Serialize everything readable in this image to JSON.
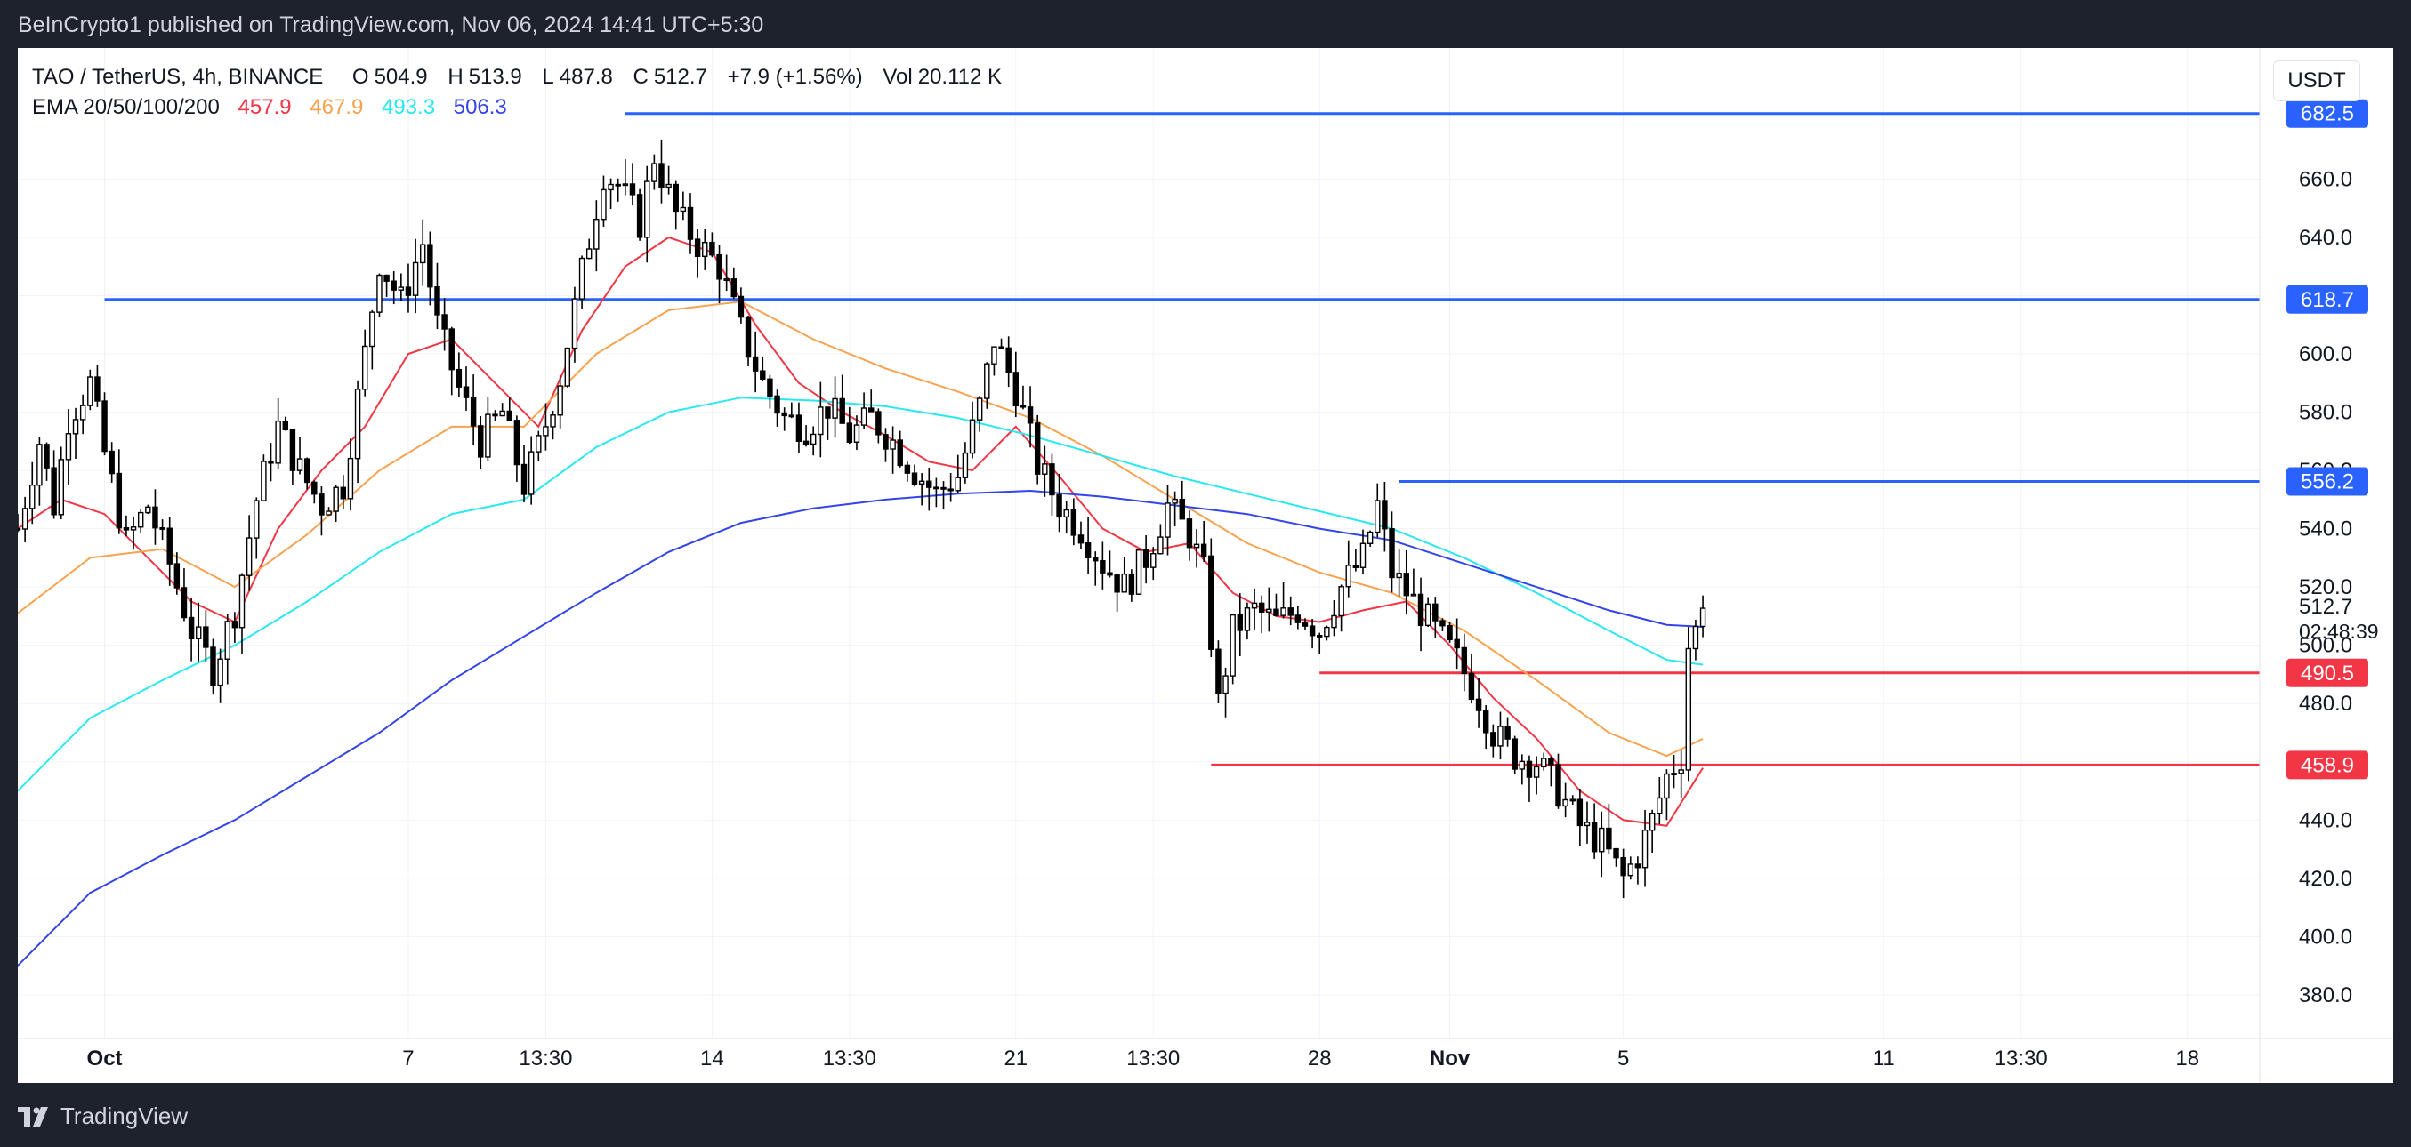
{
  "header": {
    "publisher": "BeInCrypto1 published on TradingView.com, Nov 06, 2024 14:41 UTC+5:30"
  },
  "footer": {
    "brand": "TradingView"
  },
  "legend": {
    "symbol": "TAO / TetherUS, 4h, BINANCE",
    "open_label": "O",
    "open": "504.9",
    "high_label": "H",
    "high": "513.9",
    "low_label": "L",
    "low": "487.8",
    "close_label": "C",
    "close": "512.7",
    "change": "+7.9 (+1.56%)",
    "vol_label": "Vol",
    "vol": "20.112 K",
    "ema_label": "EMA 20/50/100/200",
    "ema_values": [
      "457.9",
      "467.9",
      "493.3",
      "506.3"
    ]
  },
  "currency": "USDT",
  "colors": {
    "ema20": "#f23645",
    "ema50": "#f7a350",
    "ema100": "#2ae8f0",
    "ema200": "#3344e8",
    "resistance": "#2962ff",
    "support": "#f23645",
    "price_marker": "#ffffff"
  },
  "chart_data": {
    "type": "candlestick",
    "title": "TAO / TetherUS, 4h, BINANCE",
    "ylim": [
      365,
      705
    ],
    "y_ticks": [
      "380.0",
      "400.0",
      "420.0",
      "440.0",
      "460.0",
      "480.0",
      "500.0",
      "520.0",
      "540.0",
      "560.0",
      "580.0",
      "600.0",
      "620.0",
      "640.0",
      "660.0"
    ],
    "x_ticks": [
      {
        "label": "Oct",
        "bold": true,
        "x": 12
      },
      {
        "label": "7",
        "bold": false,
        "x": 54
      },
      {
        "label": "13:30",
        "bold": false,
        "x": 73
      },
      {
        "label": "14",
        "bold": false,
        "x": 96
      },
      {
        "label": "13:30",
        "bold": false,
        "x": 115
      },
      {
        "label": "21",
        "bold": false,
        "x": 138
      },
      {
        "label": "13:30",
        "bold": false,
        "x": 157
      },
      {
        "label": "28",
        "bold": false,
        "x": 180
      },
      {
        "label": "Nov",
        "bold": true,
        "x": 198
      },
      {
        "label": "5",
        "bold": false,
        "x": 222
      },
      {
        "label": "11",
        "bold": false,
        "x": 258
      },
      {
        "label": "13:30",
        "bold": false,
        "x": 277
      },
      {
        "label": "18",
        "bold": false,
        "x": 300
      }
    ],
    "x_range": [
      0,
      310
    ],
    "ohlc_anchors": [
      {
        "x": 0,
        "price": 540
      },
      {
        "x": 3,
        "price": 570
      },
      {
        "x": 5,
        "price": 548
      },
      {
        "x": 7,
        "price": 578
      },
      {
        "x": 10,
        "price": 590
      },
      {
        "x": 12,
        "price": 566
      },
      {
        "x": 15,
        "price": 535
      },
      {
        "x": 18,
        "price": 548
      },
      {
        "x": 21,
        "price": 528
      },
      {
        "x": 24,
        "price": 505
      },
      {
        "x": 27,
        "price": 492
      },
      {
        "x": 30,
        "price": 512
      },
      {
        "x": 33,
        "price": 550
      },
      {
        "x": 36,
        "price": 575
      },
      {
        "x": 39,
        "price": 560
      },
      {
        "x": 42,
        "price": 548
      },
      {
        "x": 45,
        "price": 555
      },
      {
        "x": 48,
        "price": 600
      },
      {
        "x": 50,
        "price": 632
      },
      {
        "x": 53,
        "price": 618
      },
      {
        "x": 56,
        "price": 638
      },
      {
        "x": 58,
        "price": 610
      },
      {
        "x": 61,
        "price": 588
      },
      {
        "x": 64,
        "price": 570
      },
      {
        "x": 67,
        "price": 580
      },
      {
        "x": 70,
        "price": 555
      },
      {
        "x": 72,
        "price": 568
      },
      {
        "x": 75,
        "price": 592
      },
      {
        "x": 78,
        "price": 628
      },
      {
        "x": 81,
        "price": 662
      },
      {
        "x": 83,
        "price": 658
      },
      {
        "x": 86,
        "price": 645
      },
      {
        "x": 88,
        "price": 668
      },
      {
        "x": 91,
        "price": 648
      },
      {
        "x": 94,
        "price": 638
      },
      {
        "x": 97,
        "price": 630
      },
      {
        "x": 100,
        "price": 608
      },
      {
        "x": 103,
        "price": 590
      },
      {
        "x": 106,
        "price": 578
      },
      {
        "x": 109,
        "price": 575
      },
      {
        "x": 112,
        "price": 582
      },
      {
        "x": 115,
        "price": 572
      },
      {
        "x": 118,
        "price": 578
      },
      {
        "x": 121,
        "price": 570
      },
      {
        "x": 124,
        "price": 560
      },
      {
        "x": 127,
        "price": 552
      },
      {
        "x": 130,
        "price": 558
      },
      {
        "x": 133,
        "price": 582
      },
      {
        "x": 135,
        "price": 605
      },
      {
        "x": 138,
        "price": 588
      },
      {
        "x": 141,
        "price": 562
      },
      {
        "x": 144,
        "price": 548
      },
      {
        "x": 147,
        "price": 540
      },
      {
        "x": 150,
        "price": 528
      },
      {
        "x": 153,
        "price": 520
      },
      {
        "x": 156,
        "price": 530
      },
      {
        "x": 159,
        "price": 548
      },
      {
        "x": 162,
        "price": 538
      },
      {
        "x": 164,
        "price": 525
      },
      {
        "x": 166,
        "price": 480
      },
      {
        "x": 168,
        "price": 505
      },
      {
        "x": 171,
        "price": 512
      },
      {
        "x": 174,
        "price": 508
      },
      {
        "x": 177,
        "price": 512
      },
      {
        "x": 180,
        "price": 505
      },
      {
        "x": 183,
        "price": 520
      },
      {
        "x": 186,
        "price": 530
      },
      {
        "x": 188,
        "price": 548
      },
      {
        "x": 190,
        "price": 525
      },
      {
        "x": 193,
        "price": 515
      },
      {
        "x": 196,
        "price": 505
      },
      {
        "x": 199,
        "price": 495
      },
      {
        "x": 202,
        "price": 482
      },
      {
        "x": 204,
        "price": 470
      },
      {
        "x": 207,
        "price": 462
      },
      {
        "x": 210,
        "price": 460
      },
      {
        "x": 213,
        "price": 450
      },
      {
        "x": 216,
        "price": 438
      },
      {
        "x": 219,
        "price": 432
      },
      {
        "x": 222,
        "price": 420
      },
      {
        "x": 224,
        "price": 428
      },
      {
        "x": 226,
        "price": 440
      },
      {
        "x": 228,
        "price": 455
      },
      {
        "x": 230,
        "price": 462
      },
      {
        "x": 231,
        "price": 500
      },
      {
        "x": 232,
        "price": 505
      },
      {
        "x": 233,
        "price": 512.7
      }
    ],
    "ema_series": [
      {
        "name": "EMA 20",
        "color_key": "ema20",
        "points": [
          [
            0,
            540
          ],
          [
            6,
            550
          ],
          [
            12,
            545
          ],
          [
            18,
            530
          ],
          [
            24,
            515
          ],
          [
            30,
            508
          ],
          [
            36,
            540
          ],
          [
            42,
            560
          ],
          [
            48,
            575
          ],
          [
            54,
            600
          ],
          [
            60,
            605
          ],
          [
            66,
            590
          ],
          [
            72,
            575
          ],
          [
            78,
            608
          ],
          [
            84,
            630
          ],
          [
            90,
            640
          ],
          [
            96,
            635
          ],
          [
            102,
            610
          ],
          [
            108,
            590
          ],
          [
            114,
            580
          ],
          [
            120,
            572
          ],
          [
            126,
            563
          ],
          [
            132,
            560
          ],
          [
            138,
            575
          ],
          [
            144,
            558
          ],
          [
            150,
            540
          ],
          [
            156,
            532
          ],
          [
            162,
            535
          ],
          [
            168,
            518
          ],
          [
            174,
            510
          ],
          [
            180,
            508
          ],
          [
            186,
            512
          ],
          [
            192,
            515
          ],
          [
            198,
            500
          ],
          [
            204,
            482
          ],
          [
            210,
            468
          ],
          [
            216,
            450
          ],
          [
            222,
            440
          ],
          [
            228,
            438
          ],
          [
            233,
            457.9
          ]
        ]
      },
      {
        "name": "EMA 50",
        "color_key": "ema50",
        "points": [
          [
            0,
            511
          ],
          [
            10,
            530
          ],
          [
            20,
            533
          ],
          [
            30,
            520
          ],
          [
            40,
            538
          ],
          [
            50,
            560
          ],
          [
            60,
            575
          ],
          [
            70,
            575
          ],
          [
            80,
            600
          ],
          [
            90,
            615
          ],
          [
            100,
            618
          ],
          [
            110,
            605
          ],
          [
            120,
            595
          ],
          [
            130,
            587
          ],
          [
            140,
            578
          ],
          [
            150,
            565
          ],
          [
            160,
            550
          ],
          [
            170,
            535
          ],
          [
            180,
            525
          ],
          [
            190,
            518
          ],
          [
            200,
            505
          ],
          [
            210,
            488
          ],
          [
            220,
            470
          ],
          [
            228,
            462
          ],
          [
            233,
            467.9
          ]
        ]
      },
      {
        "name": "EMA 100",
        "color_key": "ema100",
        "points": [
          [
            0,
            450
          ],
          [
            10,
            475
          ],
          [
            20,
            488
          ],
          [
            30,
            500
          ],
          [
            40,
            515
          ],
          [
            50,
            532
          ],
          [
            60,
            545
          ],
          [
            70,
            550
          ],
          [
            80,
            568
          ],
          [
            90,
            580
          ],
          [
            100,
            585
          ],
          [
            110,
            584
          ],
          [
            120,
            582
          ],
          [
            130,
            578
          ],
          [
            140,
            572
          ],
          [
            150,
            565
          ],
          [
            160,
            558
          ],
          [
            170,
            552
          ],
          [
            180,
            546
          ],
          [
            190,
            540
          ],
          [
            200,
            530
          ],
          [
            210,
            518
          ],
          [
            220,
            505
          ],
          [
            228,
            495
          ],
          [
            233,
            493.3
          ]
        ]
      },
      {
        "name": "EMA 200",
        "color_key": "ema200",
        "points": [
          [
            0,
            390
          ],
          [
            10,
            415
          ],
          [
            20,
            428
          ],
          [
            30,
            440
          ],
          [
            40,
            455
          ],
          [
            50,
            470
          ],
          [
            60,
            488
          ],
          [
            70,
            503
          ],
          [
            80,
            518
          ],
          [
            90,
            532
          ],
          [
            100,
            542
          ],
          [
            110,
            547
          ],
          [
            120,
            550
          ],
          [
            130,
            552
          ],
          [
            140,
            553
          ],
          [
            150,
            551
          ],
          [
            160,
            548
          ],
          [
            170,
            545
          ],
          [
            180,
            540
          ],
          [
            190,
            536
          ],
          [
            200,
            528
          ],
          [
            210,
            520
          ],
          [
            220,
            512
          ],
          [
            228,
            507
          ],
          [
            233,
            506.3
          ]
        ]
      }
    ],
    "horizontal_lines": [
      {
        "price": 682.5,
        "label": "682.5",
        "color_key": "resistance",
        "x_start": 84
      },
      {
        "price": 618.7,
        "label": "618.7",
        "color_key": "resistance",
        "x_start": 12
      },
      {
        "price": 556.2,
        "label": "556.2",
        "color_key": "resistance",
        "x_start": 191
      },
      {
        "price": 490.5,
        "label": "490.5",
        "color_key": "support",
        "x_start": 180
      },
      {
        "price": 458.9,
        "label": "458.9",
        "color_key": "support",
        "x_start": 165
      }
    ],
    "last_price": {
      "price": 512.7,
      "label": "512.7",
      "countdown": "02:48:39"
    }
  }
}
